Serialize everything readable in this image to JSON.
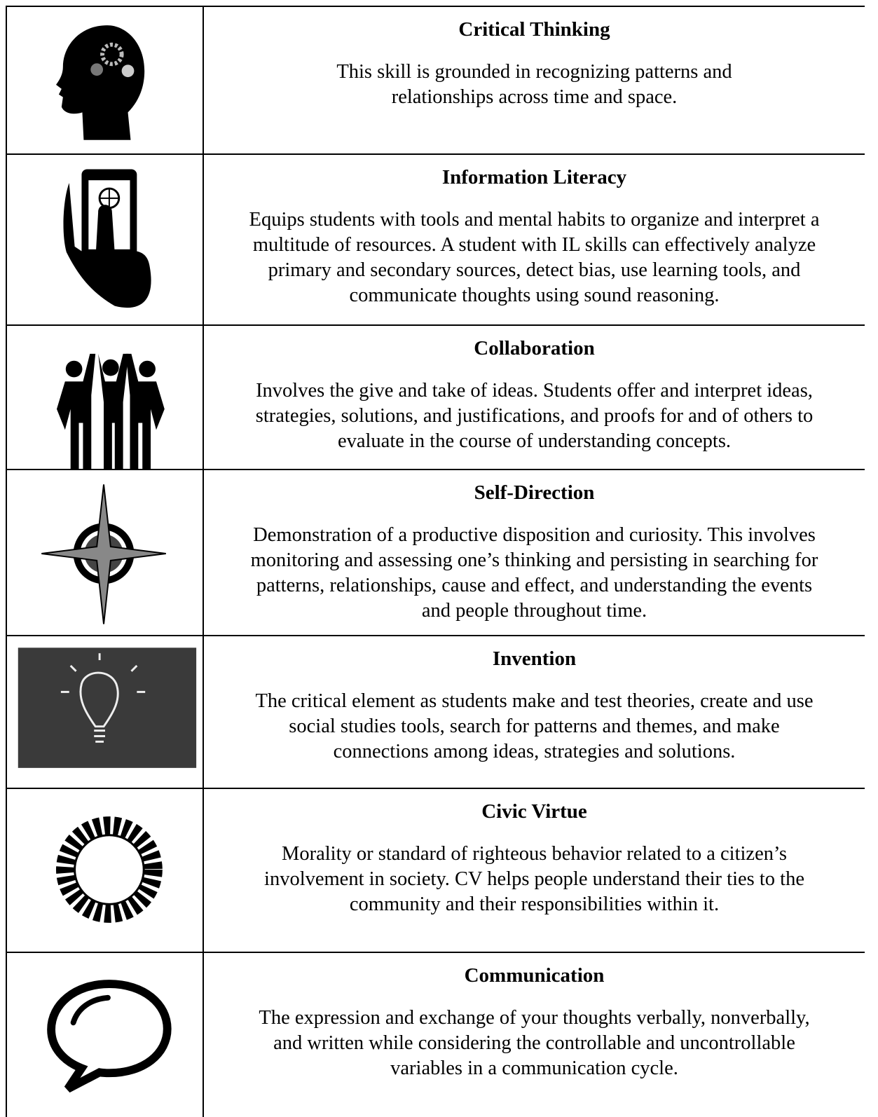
{
  "rows": [
    {
      "title": "Critical Thinking",
      "lines": [
        "This skill is grounded in recognizing patterns and",
        "relationships across time and space."
      ]
    },
    {
      "title": "Information Literacy",
      "lines": [
        "Equips students with tools and mental habits to organize and interpret a",
        "multitude of resources.  A student with IL skills can effectively analyze",
        "primary and secondary sources, detect bias, use learning tools, and",
        "communicate thoughts using sound reasoning."
      ]
    },
    {
      "title": "Collaboration",
      "lines": [
        "Involves the give and take of ideas.  Students offer and interpret ideas,",
        "strategies, solutions, and justifications, and proofs for and of others to",
        "evaluate in the course of understanding concepts."
      ]
    },
    {
      "title": "Self-Direction",
      "lines": [
        "Demonstration of a productive disposition and curiosity.  This involves",
        "monitoring and assessing one’s thinking and persisting in searching for",
        "patterns, relationships, cause and effect, and understanding the events",
        "and people throughout time."
      ]
    },
    {
      "title": "Invention",
      "lines": [
        "The critical element as students make and test theories, create and use",
        "social studies tools, search for patterns and themes, and make",
        "connections among ideas, strategies and solutions."
      ]
    },
    {
      "title": "Civic Virtue",
      "lines": [
        "Morality or standard of righteous behavior related to a citizen’s",
        "involvement in society.  CV helps people understand their ties to the",
        "community and their responsibilities within it."
      ]
    },
    {
      "title": "Communication",
      "lines": [
        "The expression and exchange of your thoughts verbally, nonverbally,",
        "and written while considering the controllable and uncontrollable",
        "variables in a communication cycle."
      ]
    }
  ]
}
